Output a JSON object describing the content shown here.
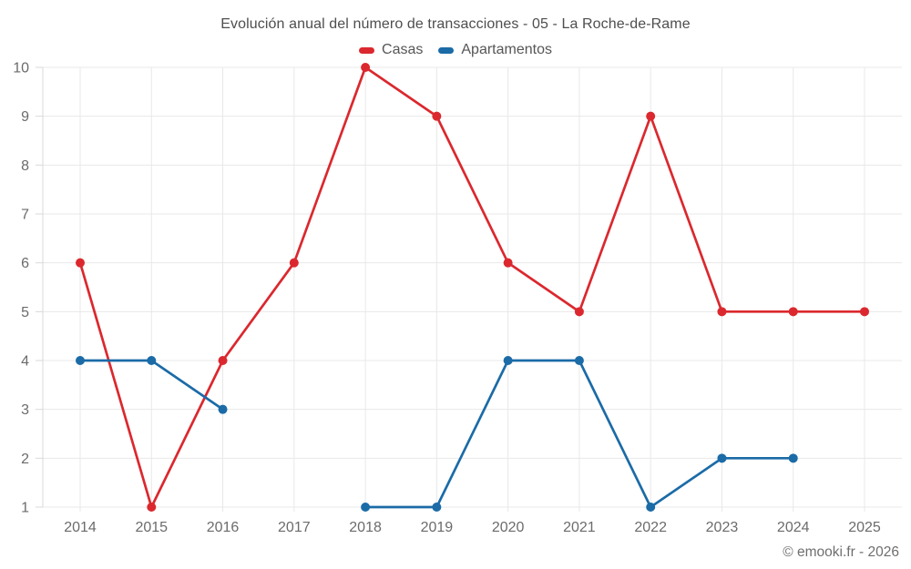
{
  "footer": {
    "copyright": "© emooki.fr - 2026"
  },
  "colors": {
    "casas": "#db282e",
    "apartamentos": "#1b6ba7",
    "gridline": "#e8e8e8",
    "axis": "#d9d9d9",
    "tick_label": "#6b6b6b",
    "title_text": "#4e4e4e"
  },
  "chart_data": {
    "type": "line",
    "title": "Evolución anual del número de transacciones - 05 - La Roche-de-Rame",
    "xlabel": "",
    "ylabel": "",
    "x": [
      "2014",
      "2015",
      "2016",
      "2017",
      "2018",
      "2019",
      "2020",
      "2021",
      "2022",
      "2023",
      "2024",
      "2025"
    ],
    "y_ticks": [
      1,
      2,
      3,
      4,
      5,
      6,
      7,
      8,
      9,
      10
    ],
    "ylim": [
      1,
      10
    ],
    "grid": true,
    "legend_position": "top",
    "series": [
      {
        "name": "Casas",
        "color": "#db282e",
        "values": [
          6,
          1,
          4,
          6,
          10,
          9,
          6,
          5,
          9,
          5,
          5,
          5
        ]
      },
      {
        "name": "Apartamentos",
        "color": "#1b6ba7",
        "values": [
          4,
          4,
          3,
          null,
          1,
          1,
          4,
          4,
          1,
          2,
          2,
          null
        ]
      }
    ]
  }
}
